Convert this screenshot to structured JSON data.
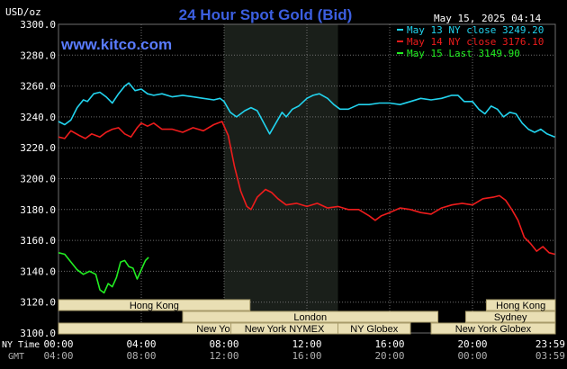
{
  "header": {
    "title": "24 Hour Spot Gold (Bid)",
    "website": "www.kitco.com",
    "timestamp": "May 15, 2025 04:14",
    "unit_label": "USD/oz"
  },
  "footer": {
    "ny_time_label": "NY Time",
    "gmt_label": "GMT"
  },
  "colors": {
    "background": "#000000",
    "plot_background": "#000000",
    "ny_session_shade": "#1a1f1a",
    "grid": "#6e6e6e",
    "title": "#3c5fe0",
    "website": "#5a7cff",
    "text": "#ffffff",
    "gmt_text": "#b0b0b0",
    "session_fill": "#e9dfb4",
    "session_text": "#000000",
    "session_border": "#a89b6a"
  },
  "sessions": [
    {
      "name": "Hong Kong",
      "row": 1,
      "start": 0.0,
      "end": 9.25
    },
    {
      "name": "London",
      "row": 2,
      "start": 6.0,
      "end": 18.33
    },
    {
      "name": "New York Globex",
      "row": 3,
      "start": 0.0,
      "end": 17.0
    },
    {
      "name": "New York NYMEX",
      "row": 3,
      "start": 8.33,
      "end": 13.5
    },
    {
      "name": "NY Globex",
      "row": 3,
      "start": 13.5,
      "end": 17.0
    },
    {
      "name": "Hong Kong",
      "row": 1,
      "start": 20.67,
      "end": 24.0
    },
    {
      "name": "Sydney",
      "row": 2,
      "start": 19.67,
      "end": 24.0
    },
    {
      "name": "New York Globex",
      "row": 3,
      "start": 18.0,
      "end": 24.0
    }
  ],
  "chart_data": {
    "type": "line",
    "title": "24 Hour Spot Gold (Bid)",
    "ylabel": "USD/oz",
    "ylim": [
      3100,
      3300
    ],
    "yticks": [
      3100,
      3120,
      3140,
      3160,
      3180,
      3200,
      3220,
      3240,
      3260,
      3280,
      3300
    ],
    "xlim": [
      0,
      24
    ],
    "xticks_ny": [
      "00:00",
      "04:00",
      "08:00",
      "12:00",
      "16:00",
      "20:00",
      "23:59"
    ],
    "xticks_gmt": [
      "04:00",
      "08:00",
      "12:00",
      "16:00",
      "20:00",
      "00:00",
      "03:59"
    ],
    "grid": true,
    "legend_position": "top-right",
    "shaded_region": {
      "label": "New York NYMEX",
      "start": 8.0,
      "end": 13.5
    },
    "series": [
      {
        "name": "May 13 NY close 3249.20",
        "color": "#22d3ee",
        "points": [
          [
            0,
            3237
          ],
          [
            0.3,
            3235
          ],
          [
            0.6,
            3238
          ],
          [
            0.9,
            3246
          ],
          [
            1.2,
            3251
          ],
          [
            1.4,
            3250
          ],
          [
            1.7,
            3255
          ],
          [
            2.0,
            3256
          ],
          [
            2.3,
            3253
          ],
          [
            2.6,
            3249
          ],
          [
            2.9,
            3255
          ],
          [
            3.2,
            3260
          ],
          [
            3.4,
            3262
          ],
          [
            3.7,
            3257
          ],
          [
            4.0,
            3258
          ],
          [
            4.3,
            3255
          ],
          [
            4.6,
            3254
          ],
          [
            5.0,
            3255
          ],
          [
            5.5,
            3253
          ],
          [
            6.0,
            3254
          ],
          [
            6.5,
            3253
          ],
          [
            7.0,
            3252
          ],
          [
            7.5,
            3251
          ],
          [
            7.8,
            3252
          ],
          [
            8.0,
            3250
          ],
          [
            8.3,
            3243
          ],
          [
            8.6,
            3240
          ],
          [
            9.0,
            3244
          ],
          [
            9.3,
            3246
          ],
          [
            9.6,
            3244
          ],
          [
            10.0,
            3234
          ],
          [
            10.2,
            3229
          ],
          [
            10.5,
            3236
          ],
          [
            10.8,
            3243
          ],
          [
            11.0,
            3240
          ],
          [
            11.3,
            3245
          ],
          [
            11.6,
            3247
          ],
          [
            12.0,
            3252
          ],
          [
            12.3,
            3254
          ],
          [
            12.6,
            3255
          ],
          [
            13.0,
            3252
          ],
          [
            13.3,
            3248
          ],
          [
            13.6,
            3245
          ],
          [
            14.0,
            3245
          ],
          [
            14.5,
            3248
          ],
          [
            15.0,
            3248
          ],
          [
            15.5,
            3249
          ],
          [
            16.0,
            3249
          ],
          [
            16.5,
            3248
          ],
          [
            17.0,
            3250
          ],
          [
            17.5,
            3252
          ],
          [
            18.0,
            3251
          ],
          [
            18.5,
            3252
          ],
          [
            19.0,
            3254
          ],
          [
            19.3,
            3254
          ],
          [
            19.6,
            3250
          ],
          [
            20.0,
            3250
          ],
          [
            20.3,
            3245
          ],
          [
            20.6,
            3242
          ],
          [
            20.9,
            3247
          ],
          [
            21.2,
            3245
          ],
          [
            21.5,
            3240
          ],
          [
            21.8,
            3243
          ],
          [
            22.1,
            3242
          ],
          [
            22.4,
            3236
          ],
          [
            22.7,
            3232
          ],
          [
            23.0,
            3230
          ],
          [
            23.3,
            3232
          ],
          [
            23.6,
            3229
          ],
          [
            23.98,
            3227
          ]
        ]
      },
      {
        "name": "May 14 NY close 3176.10",
        "color": "#ee1c1c",
        "points": [
          [
            0,
            3227
          ],
          [
            0.3,
            3226
          ],
          [
            0.6,
            3231
          ],
          [
            1.0,
            3228
          ],
          [
            1.3,
            3226
          ],
          [
            1.6,
            3229
          ],
          [
            2.0,
            3227
          ],
          [
            2.3,
            3230
          ],
          [
            2.6,
            3232
          ],
          [
            2.9,
            3233
          ],
          [
            3.2,
            3229
          ],
          [
            3.5,
            3227
          ],
          [
            3.8,
            3233
          ],
          [
            4.0,
            3236
          ],
          [
            4.3,
            3234
          ],
          [
            4.6,
            3236
          ],
          [
            5.0,
            3232
          ],
          [
            5.5,
            3232
          ],
          [
            6.0,
            3230
          ],
          [
            6.5,
            3233
          ],
          [
            7.0,
            3231
          ],
          [
            7.5,
            3235
          ],
          [
            7.9,
            3237
          ],
          [
            8.2,
            3228
          ],
          [
            8.5,
            3208
          ],
          [
            8.8,
            3192
          ],
          [
            9.1,
            3182
          ],
          [
            9.3,
            3180
          ],
          [
            9.6,
            3188
          ],
          [
            10.0,
            3193
          ],
          [
            10.3,
            3191
          ],
          [
            10.6,
            3187
          ],
          [
            11.0,
            3183
          ],
          [
            11.5,
            3184
          ],
          [
            12.0,
            3182
          ],
          [
            12.5,
            3184
          ],
          [
            13.0,
            3181
          ],
          [
            13.5,
            3182
          ],
          [
            14.0,
            3180
          ],
          [
            14.5,
            3180
          ],
          [
            15.0,
            3176
          ],
          [
            15.3,
            3173
          ],
          [
            15.6,
            3176
          ],
          [
            16.0,
            3178
          ],
          [
            16.5,
            3181
          ],
          [
            17.0,
            3180
          ],
          [
            17.5,
            3178
          ],
          [
            18.0,
            3177
          ],
          [
            18.5,
            3181
          ],
          [
            19.0,
            3183
          ],
          [
            19.5,
            3184
          ],
          [
            20.0,
            3183
          ],
          [
            20.5,
            3187
          ],
          [
            21.0,
            3188
          ],
          [
            21.3,
            3189
          ],
          [
            21.6,
            3186
          ],
          [
            21.9,
            3180
          ],
          [
            22.2,
            3173
          ],
          [
            22.5,
            3162
          ],
          [
            22.8,
            3158
          ],
          [
            23.1,
            3153
          ],
          [
            23.4,
            3156
          ],
          [
            23.7,
            3152
          ],
          [
            23.98,
            3151
          ]
        ]
      },
      {
        "name": "May 15 Last 3149.90",
        "color": "#22ee22",
        "points": [
          [
            0,
            3152
          ],
          [
            0.3,
            3151
          ],
          [
            0.6,
            3146
          ],
          [
            0.9,
            3141
          ],
          [
            1.2,
            3138
          ],
          [
            1.5,
            3140
          ],
          [
            1.8,
            3138
          ],
          [
            2.0,
            3128
          ],
          [
            2.2,
            3126
          ],
          [
            2.4,
            3132
          ],
          [
            2.6,
            3130
          ],
          [
            2.8,
            3136
          ],
          [
            3.0,
            3146
          ],
          [
            3.2,
            3147
          ],
          [
            3.4,
            3143
          ],
          [
            3.6,
            3142
          ],
          [
            3.8,
            3135
          ],
          [
            4.0,
            3141
          ],
          [
            4.2,
            3147
          ],
          [
            4.35,
            3149
          ]
        ]
      }
    ]
  }
}
